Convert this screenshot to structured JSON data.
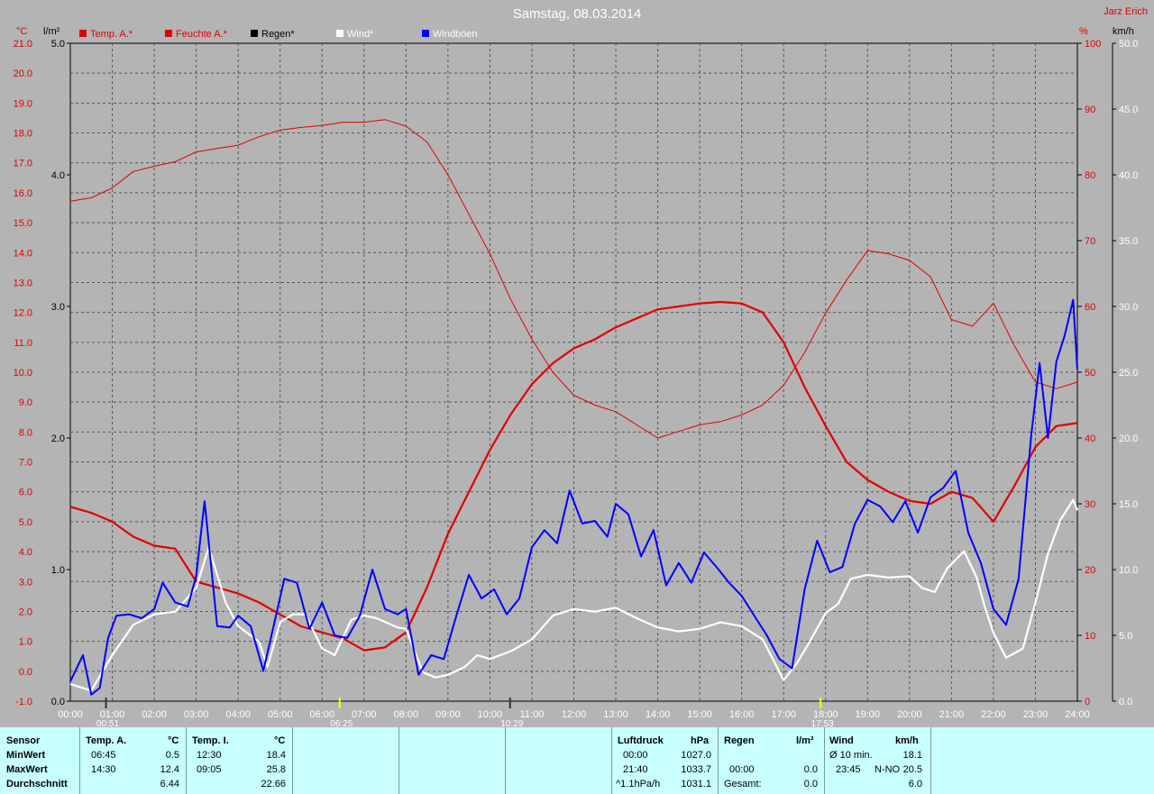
{
  "header": {
    "title": "Samstag, 08.03.2014",
    "station": "Jarz Erich",
    "unit_temp": "°C",
    "unit_rain": "l/m²",
    "unit_hum": "%",
    "unit_wind": "km/h"
  },
  "legend": [
    {
      "label": "Temp. A.*",
      "color": "#e00000"
    },
    {
      "label": "Feuchte A.*",
      "color": "#e00000"
    },
    {
      "label": "Regen*",
      "color": "#000000"
    },
    {
      "label": "Wind*",
      "color": "#ffffff"
    },
    {
      "label": "Windböen",
      "color": "#0000ff"
    }
  ],
  "sun_markers": [
    {
      "label": "00:51",
      "hour": 0.85
    },
    {
      "label": "06:25",
      "hour": 6.42
    },
    {
      "label": "10:29",
      "hour": 10.48
    },
    {
      "label": "17:53",
      "hour": 17.88
    }
  ],
  "chart_data": {
    "type": "line",
    "title": "Samstag, 08.03.2014",
    "x_range": [
      0,
      24
    ],
    "x_ticks": [
      "00:00",
      "01:00",
      "02:00",
      "03:00",
      "04:00",
      "05:00",
      "06:00",
      "07:00",
      "08:00",
      "09:00",
      "10:00",
      "11:00",
      "12:00",
      "13:00",
      "14:00",
      "15:00",
      "16:00",
      "17:00",
      "18:00",
      "19:00",
      "20:00",
      "21:00",
      "22:00",
      "23:00",
      "24:00"
    ],
    "axes": {
      "temp": {
        "range": [
          -1,
          21
        ],
        "ticks": [
          "-1.0",
          "0.0",
          "1.0",
          "2.0",
          "3.0",
          "4.0",
          "5.0",
          "6.0",
          "7.0",
          "8.0",
          "9.0",
          "10.0",
          "11.0",
          "12.0",
          "13.0",
          "14.0",
          "15.0",
          "16.0",
          "17.0",
          "18.0",
          "19.0",
          "20.0",
          "21.0"
        ]
      },
      "rain": {
        "range": [
          0,
          5
        ],
        "ticks": [
          "0.0",
          "1.0",
          "2.0",
          "3.0",
          "4.0",
          "5.0"
        ]
      },
      "humidity": {
        "range": [
          0,
          100
        ],
        "ticks": [
          "0",
          "10",
          "20",
          "30",
          "40",
          "50",
          "60",
          "70",
          "80",
          "90",
          "100"
        ]
      },
      "wind": {
        "range": [
          0,
          50
        ],
        "ticks": [
          "0.0",
          "5.0",
          "10.0",
          "15.0",
          "20.0",
          "25.0",
          "30.0",
          "35.0",
          "40.0",
          "45.0",
          "50.0"
        ]
      }
    },
    "grid": true,
    "series": [
      {
        "name": "Temp. A.*",
        "axis": "temp",
        "color": "#e00000",
        "width": 2.2,
        "points": [
          [
            0,
            5.5
          ],
          [
            0.5,
            5.3
          ],
          [
            1,
            5.0
          ],
          [
            1.5,
            4.5
          ],
          [
            2,
            4.2
          ],
          [
            2.5,
            4.1
          ],
          [
            3,
            3.0
          ],
          [
            3.5,
            2.8
          ],
          [
            4,
            2.6
          ],
          [
            4.5,
            2.3
          ],
          [
            5,
            1.9
          ],
          [
            5.5,
            1.5
          ],
          [
            6,
            1.3
          ],
          [
            6.5,
            1.1
          ],
          [
            7,
            0.7
          ],
          [
            7.5,
            0.8
          ],
          [
            8,
            1.3
          ],
          [
            8.5,
            2.8
          ],
          [
            9,
            4.6
          ],
          [
            9.5,
            6.0
          ],
          [
            10,
            7.4
          ],
          [
            10.5,
            8.6
          ],
          [
            11,
            9.6
          ],
          [
            11.5,
            10.3
          ],
          [
            12,
            10.8
          ],
          [
            12.5,
            11.1
          ],
          [
            13,
            11.5
          ],
          [
            13.5,
            11.8
          ],
          [
            14,
            12.1
          ],
          [
            14.5,
            12.2
          ],
          [
            15,
            12.3
          ],
          [
            15.5,
            12.35
          ],
          [
            16,
            12.3
          ],
          [
            16.5,
            12.0
          ],
          [
            17,
            11.0
          ],
          [
            17.5,
            9.5
          ],
          [
            18,
            8.2
          ],
          [
            18.5,
            7.0
          ],
          [
            19,
            6.4
          ],
          [
            19.5,
            6.0
          ],
          [
            20,
            5.7
          ],
          [
            20.5,
            5.6
          ],
          [
            21,
            6.0
          ],
          [
            21.5,
            5.8
          ],
          [
            22,
            5.0
          ],
          [
            22.5,
            6.2
          ],
          [
            23,
            7.5
          ],
          [
            23.5,
            8.2
          ],
          [
            24,
            8.3
          ]
        ]
      },
      {
        "name": "Feuchte A.*",
        "axis": "humidity",
        "color": "#e00000",
        "width": 1,
        "points": [
          [
            0,
            76
          ],
          [
            0.5,
            76.5
          ],
          [
            1,
            78
          ],
          [
            1.5,
            80.5
          ],
          [
            2,
            81.3
          ],
          [
            2.5,
            82
          ],
          [
            3,
            83.5
          ],
          [
            3.5,
            84
          ],
          [
            4,
            84.5
          ],
          [
            4.5,
            85.8
          ],
          [
            5,
            86.8
          ],
          [
            5.5,
            87.2
          ],
          [
            6,
            87.5
          ],
          [
            6.5,
            88
          ],
          [
            7,
            88
          ],
          [
            7.5,
            88.4
          ],
          [
            8,
            87.4
          ],
          [
            8.5,
            85
          ],
          [
            9,
            80
          ],
          [
            9.5,
            74
          ],
          [
            10,
            68
          ],
          [
            10.5,
            61
          ],
          [
            11,
            55
          ],
          [
            11.5,
            50
          ],
          [
            12,
            46.5
          ],
          [
            12.5,
            45
          ],
          [
            13,
            44
          ],
          [
            13.5,
            42
          ],
          [
            14,
            40
          ],
          [
            14.5,
            41
          ],
          [
            15,
            42
          ],
          [
            15.5,
            42.5
          ],
          [
            16,
            43.5
          ],
          [
            16.5,
            45
          ],
          [
            17,
            48
          ],
          [
            17.5,
            53
          ],
          [
            18,
            59
          ],
          [
            18.5,
            64
          ],
          [
            19,
            68.5
          ],
          [
            19.5,
            68
          ],
          [
            20,
            67
          ],
          [
            20.5,
            64.5
          ],
          [
            21,
            58
          ],
          [
            21.5,
            57
          ],
          [
            22,
            60.5
          ],
          [
            22.5,
            54
          ],
          [
            23,
            48.5
          ],
          [
            23.5,
            47.5
          ],
          [
            24,
            48.5
          ]
        ]
      },
      {
        "name": "Wind*",
        "axis": "wind",
        "color": "#ffffff",
        "width": 2.2,
        "points": [
          [
            0,
            1.3
          ],
          [
            0.5,
            0.8
          ],
          [
            1,
            3.5
          ],
          [
            1.5,
            5.8
          ],
          [
            2,
            6.6
          ],
          [
            2.5,
            6.8
          ],
          [
            3,
            8.6
          ],
          [
            3.3,
            11.7
          ],
          [
            3.7,
            7.5
          ],
          [
            4,
            5.7
          ],
          [
            4.5,
            4.5
          ],
          [
            4.7,
            2.6
          ],
          [
            5,
            6.0
          ],
          [
            5.3,
            6.6
          ],
          [
            5.6,
            6.6
          ],
          [
            6,
            4.0
          ],
          [
            6.3,
            3.5
          ],
          [
            6.7,
            6.2
          ],
          [
            7,
            6.5
          ],
          [
            7.3,
            6.3
          ],
          [
            7.8,
            5.6
          ],
          [
            8,
            5.5
          ],
          [
            8.4,
            2.2
          ],
          [
            8.7,
            1.8
          ],
          [
            9,
            2.0
          ],
          [
            9.4,
            2.6
          ],
          [
            9.7,
            3.5
          ],
          [
            10,
            3.2
          ],
          [
            10.5,
            3.8
          ],
          [
            11,
            4.7
          ],
          [
            11.5,
            6.5
          ],
          [
            12,
            7.0
          ],
          [
            12.5,
            6.8
          ],
          [
            13,
            7.1
          ],
          [
            13.5,
            6.3
          ],
          [
            14,
            5.6
          ],
          [
            14.5,
            5.3
          ],
          [
            15,
            5.5
          ],
          [
            15.5,
            6.0
          ],
          [
            16,
            5.7
          ],
          [
            16.5,
            4.7
          ],
          [
            17,
            1.6
          ],
          [
            17.3,
            2.8
          ],
          [
            17.6,
            4.4
          ],
          [
            18,
            6.7
          ],
          [
            18.3,
            7.4
          ],
          [
            18.6,
            9.3
          ],
          [
            19,
            9.6
          ],
          [
            19.5,
            9.4
          ],
          [
            20,
            9.5
          ],
          [
            20.3,
            8.6
          ],
          [
            20.6,
            8.3
          ],
          [
            20.9,
            10.1
          ],
          [
            21.3,
            11.4
          ],
          [
            21.6,
            9.4
          ],
          [
            21.8,
            7.1
          ],
          [
            22,
            5.2
          ],
          [
            22.3,
            3.3
          ],
          [
            22.7,
            4.0
          ],
          [
            23,
            7.5
          ],
          [
            23.3,
            11.2
          ],
          [
            23.6,
            13.8
          ],
          [
            23.9,
            15.3
          ],
          [
            24,
            14.5
          ]
        ]
      },
      {
        "name": "Windböen",
        "axis": "wind",
        "color": "#0000ff",
        "width": 2,
        "points": [
          [
            0,
            1.5
          ],
          [
            0.3,
            3.5
          ],
          [
            0.5,
            0.5
          ],
          [
            0.7,
            1.0
          ],
          [
            0.9,
            4.8
          ],
          [
            1.1,
            6.5
          ],
          [
            1.4,
            6.6
          ],
          [
            1.7,
            6.3
          ],
          [
            2,
            7.0
          ],
          [
            2.2,
            9.0
          ],
          [
            2.5,
            7.5
          ],
          [
            2.8,
            7.2
          ],
          [
            3,
            9.5
          ],
          [
            3.2,
            15.2
          ],
          [
            3.5,
            5.7
          ],
          [
            3.8,
            5.6
          ],
          [
            4,
            6.5
          ],
          [
            4.3,
            5.7
          ],
          [
            4.6,
            2.3
          ],
          [
            4.9,
            6.5
          ],
          [
            5.1,
            9.3
          ],
          [
            5.4,
            9.0
          ],
          [
            5.7,
            5.5
          ],
          [
            6,
            7.5
          ],
          [
            6.3,
            5.0
          ],
          [
            6.6,
            4.8
          ],
          [
            6.9,
            6.5
          ],
          [
            7.2,
            10.0
          ],
          [
            7.5,
            7.0
          ],
          [
            7.8,
            6.6
          ],
          [
            8,
            7.0
          ],
          [
            8.3,
            2.0
          ],
          [
            8.6,
            3.5
          ],
          [
            8.9,
            3.2
          ],
          [
            9.2,
            6.5
          ],
          [
            9.5,
            9.6
          ],
          [
            9.8,
            7.8
          ],
          [
            10.1,
            8.5
          ],
          [
            10.4,
            6.6
          ],
          [
            10.7,
            7.8
          ],
          [
            11,
            11.7
          ],
          [
            11.3,
            13.0
          ],
          [
            11.6,
            12.0
          ],
          [
            11.9,
            16.0
          ],
          [
            12.2,
            13.5
          ],
          [
            12.5,
            13.7
          ],
          [
            12.8,
            12.5
          ],
          [
            13,
            15.0
          ],
          [
            13.3,
            14.2
          ],
          [
            13.6,
            11.0
          ],
          [
            13.9,
            13.0
          ],
          [
            14.2,
            8.8
          ],
          [
            14.5,
            10.5
          ],
          [
            14.8,
            9.0
          ],
          [
            15.1,
            11.3
          ],
          [
            15.4,
            10.2
          ],
          [
            15.7,
            9.0
          ],
          [
            16,
            8.0
          ],
          [
            16.3,
            6.5
          ],
          [
            16.6,
            5.0
          ],
          [
            16.9,
            3.2
          ],
          [
            17.2,
            2.5
          ],
          [
            17.5,
            8.5
          ],
          [
            17.8,
            12.2
          ],
          [
            18.1,
            9.8
          ],
          [
            18.4,
            10.2
          ],
          [
            18.7,
            13.5
          ],
          [
            19,
            15.3
          ],
          [
            19.3,
            14.8
          ],
          [
            19.6,
            13.6
          ],
          [
            19.9,
            15.2
          ],
          [
            20.2,
            12.8
          ],
          [
            20.5,
            15.5
          ],
          [
            20.8,
            16.2
          ],
          [
            21.1,
            17.5
          ],
          [
            21.4,
            12.8
          ],
          [
            21.7,
            10.5
          ],
          [
            22,
            7.0
          ],
          [
            22.3,
            5.8
          ],
          [
            22.6,
            9.3
          ],
          [
            22.9,
            20.2
          ],
          [
            23.1,
            25.7
          ],
          [
            23.3,
            20.0
          ],
          [
            23.5,
            25.8
          ],
          [
            23.7,
            27.8
          ],
          [
            23.9,
            30.5
          ],
          [
            24,
            25.2
          ]
        ]
      }
    ]
  },
  "table": {
    "sensor": {
      "header": "Sensor",
      "rows": [
        "MinWert",
        "MaxWert",
        "Durchschnitt"
      ]
    },
    "temp_a": {
      "header": "Temp. A.",
      "unit": "°C",
      "min_time": "06:45",
      "min": "0.5",
      "max_time": "14:30",
      "max": "12.4",
      "avg": "6.44"
    },
    "temp_i": {
      "header": "Temp. I.",
      "unit": "°C",
      "min_time": "12:30",
      "min": "18.4",
      "max_time": "09:05",
      "max": "25.8",
      "avg": "22.66"
    },
    "luftdruck": {
      "header": "Luftdruck",
      "unit": "hPa",
      "min_time": "00:00",
      "min": "1027.0",
      "max_time": "21:40",
      "max": "1033.7",
      "trend": "^1.1hPa/h",
      "avg": "1031.1"
    },
    "regen": {
      "header": "Regen",
      "unit": "l/m²",
      "max_time": "00:00",
      "max": "0.0",
      "total_label": "Gesamt:",
      "total": "0.0"
    },
    "wind": {
      "header": "Wind",
      "unit": "km/h",
      "avg_label": "Ø 10 min.",
      "avg_val": "18.1",
      "max_time": "23:45",
      "max_dir": "N-NO",
      "max": "20.5",
      "mean": "6.0"
    }
  }
}
